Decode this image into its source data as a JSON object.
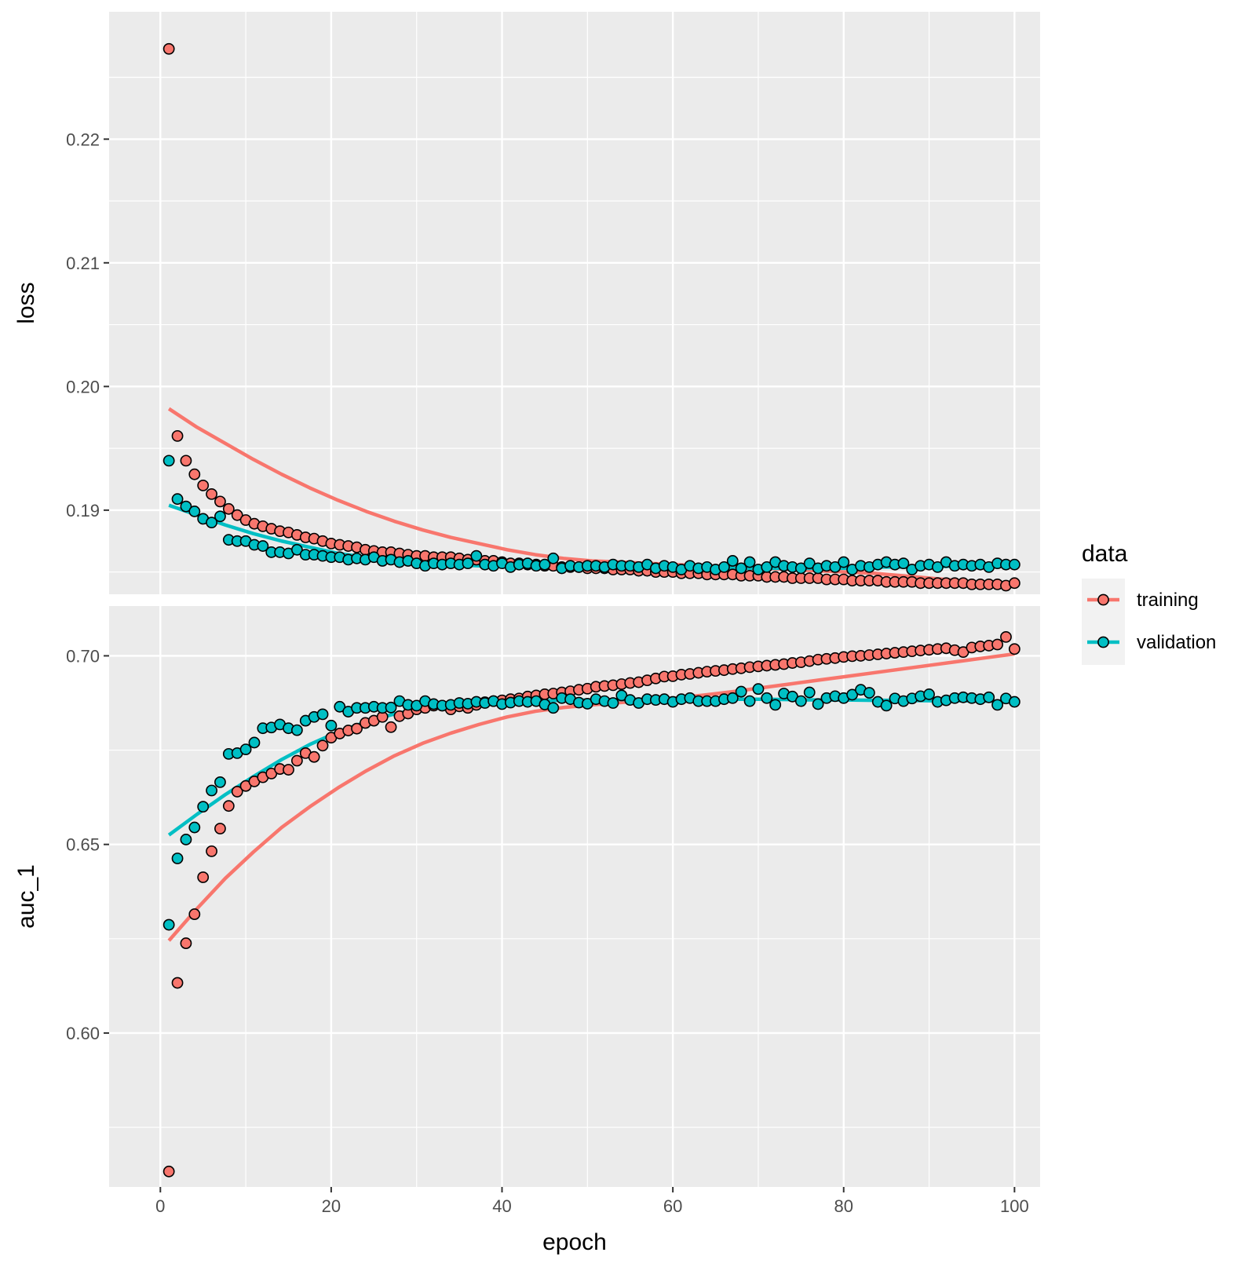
{
  "chart_data": {
    "type": "scatter",
    "xlabel": "epoch",
    "xlim": [
      -6,
      103
    ],
    "x_ticks": [
      0,
      20,
      40,
      60,
      80,
      100
    ],
    "x_tick_labels": [
      "0",
      "20",
      "40",
      "60",
      "80",
      "100"
    ],
    "legend": {
      "title": "data",
      "placement": "right",
      "items": [
        {
          "name": "training",
          "color": "#F8766D"
        },
        {
          "name": "validation",
          "color": "#00BFC4"
        }
      ]
    },
    "panels": [
      {
        "id": "loss",
        "ylabel": "loss",
        "ylim": [
          0.1832,
          0.2303
        ],
        "y_ticks": [
          0.19,
          0.2,
          0.21,
          0.22
        ],
        "y_tick_labels": [
          "0.19",
          "0.20",
          "0.21",
          "0.22"
        ],
        "series": [
          {
            "name": "training",
            "color": "#F8766D",
            "values": [
              0.2273,
              0.196,
              0.194,
              0.1929,
              0.192,
              0.1913,
              0.1907,
              0.1901,
              0.1896,
              0.1892,
              0.1889,
              0.1887,
              0.1885,
              0.1883,
              0.1882,
              0.188,
              0.1878,
              0.1877,
              0.1875,
              0.1873,
              0.1872,
              0.1871,
              0.187,
              0.1868,
              0.1867,
              0.1866,
              0.1866,
              0.1865,
              0.1864,
              0.1863,
              0.1863,
              0.1862,
              0.1862,
              0.1862,
              0.1861,
              0.186,
              0.186,
              0.1859,
              0.1859,
              0.1858,
              0.1857,
              0.1857,
              0.1856,
              0.1856,
              0.1855,
              0.1855,
              0.1854,
              0.1854,
              0.1854,
              0.1853,
              0.1853,
              0.1853,
              0.1852,
              0.1852,
              0.1852,
              0.1851,
              0.1851,
              0.185,
              0.185,
              0.185,
              0.1849,
              0.1849,
              0.1849,
              0.1848,
              0.1848,
              0.1848,
              0.1848,
              0.1847,
              0.1847,
              0.1847,
              0.1846,
              0.1846,
              0.1846,
              0.1845,
              0.1845,
              0.1845,
              0.1845,
              0.1844,
              0.1844,
              0.1844,
              0.1843,
              0.1843,
              0.1843,
              0.1843,
              0.1842,
              0.1842,
              0.1842,
              0.1842,
              0.1841,
              0.1841,
              0.1841,
              0.1841,
              0.1841,
              0.1841,
              0.184,
              0.184,
              0.184,
              0.184,
              0.1839,
              0.1841
            ],
            "smooth": [
              0.1982,
              0.1967,
              0.1954,
              0.1941,
              0.1929,
              0.1918,
              0.1908,
              0.1899,
              0.1891,
              0.1884,
              0.1878,
              0.1873,
              0.1868,
              0.1864,
              0.1861,
              0.1859,
              0.1858,
              0.1857,
              0.1856,
              0.1855,
              0.1854,
              0.1853,
              0.1852,
              0.1851,
              0.185,
              0.1849,
              0.1847,
              0.1845,
              0.1843,
              0.1841,
              0.1838
            ]
          },
          {
            "name": "validation",
            "color": "#00BFC4",
            "values": [
              0.194,
              0.1909,
              0.1903,
              0.1899,
              0.1893,
              0.189,
              0.1895,
              0.1876,
              0.1875,
              0.1875,
              0.1872,
              0.1871,
              0.1866,
              0.1866,
              0.1865,
              0.1868,
              0.1864,
              0.1864,
              0.1863,
              0.1862,
              0.1862,
              0.186,
              0.1861,
              0.186,
              0.1862,
              0.1859,
              0.186,
              0.1858,
              0.1859,
              0.1857,
              0.1855,
              0.1857,
              0.1856,
              0.1857,
              0.1856,
              0.1857,
              0.1863,
              0.1856,
              0.1855,
              0.1857,
              0.1854,
              0.1856,
              0.1857,
              0.1855,
              0.1856,
              0.1861,
              0.1853,
              0.1855,
              0.1854,
              0.1855,
              0.1855,
              0.1854,
              0.1856,
              0.1855,
              0.1855,
              0.1854,
              0.1856,
              0.1853,
              0.1855,
              0.1854,
              0.1852,
              0.1855,
              0.1853,
              0.1854,
              0.1852,
              0.1854,
              0.1859,
              0.1853,
              0.1858,
              0.1852,
              0.1854,
              0.1858,
              0.1855,
              0.1854,
              0.1853,
              0.1857,
              0.1853,
              0.1855,
              0.1854,
              0.1858,
              0.1852,
              0.1855,
              0.1854,
              0.1856,
              0.1858,
              0.1856,
              0.1857,
              0.1852,
              0.1855,
              0.1856,
              0.1854,
              0.1858,
              0.1855,
              0.1856,
              0.1855,
              0.1856,
              0.1854,
              0.1857,
              0.1856,
              0.1856
            ],
            "smooth": [
              0.1904,
              0.1896,
              0.1888,
              0.1881,
              0.1875,
              0.187,
              0.1865,
              0.1862,
              0.1859,
              0.1857,
              0.1856,
              0.1855,
              0.1855,
              0.1854,
              0.1854,
              0.1854,
              0.1854,
              0.1853,
              0.1853,
              0.1853,
              0.1853,
              0.1853,
              0.1853,
              0.1853,
              0.1853,
              0.1854,
              0.1854,
              0.1854,
              0.1855,
              0.1855,
              0.1855
            ]
          }
        ]
      },
      {
        "id": "auc_1",
        "ylabel": "auc_1",
        "ylim": [
          0.5592,
          0.7132
        ],
        "y_ticks": [
          0.6,
          0.65,
          0.7
        ],
        "y_tick_labels": [
          "0.60",
          "0.65",
          "0.70"
        ],
        "series": [
          {
            "name": "training",
            "color": "#F8766D",
            "values": [
              0.5633,
              0.6133,
              0.6238,
              0.6315,
              0.6413,
              0.6482,
              0.6542,
              0.6602,
              0.664,
              0.6655,
              0.6667,
              0.6678,
              0.6688,
              0.67,
              0.6698,
              0.6722,
              0.6742,
              0.6732,
              0.6762,
              0.6783,
              0.6794,
              0.6802,
              0.6807,
              0.6822,
              0.6828,
              0.6838,
              0.6811,
              0.684,
              0.6847,
              0.6858,
              0.6862,
              0.6868,
              0.6868,
              0.6858,
              0.6866,
              0.6862,
              0.687,
              0.6877,
              0.688,
              0.6882,
              0.6885,
              0.6887,
              0.6892,
              0.6895,
              0.6898,
              0.69,
              0.6903,
              0.6906,
              0.691,
              0.6913,
              0.6918,
              0.692,
              0.6922,
              0.6925,
              0.6928,
              0.693,
              0.6935,
              0.694,
              0.6945,
              0.6946,
              0.695,
              0.6952,
              0.6955,
              0.6958,
              0.696,
              0.6962,
              0.6965,
              0.6967,
              0.697,
              0.6972,
              0.6974,
              0.6976,
              0.6978,
              0.6981,
              0.6983,
              0.6986,
              0.699,
              0.6992,
              0.6994,
              0.6997,
              0.6999,
              0.7,
              0.7002,
              0.7004,
              0.7006,
              0.7008,
              0.701,
              0.7012,
              0.7014,
              0.7016,
              0.7018,
              0.702,
              0.7015,
              0.701,
              0.7022,
              0.7025,
              0.7027,
              0.703,
              0.705,
              0.7018
            ],
            "smooth": [
              0.6245,
              0.633,
              0.641,
              0.648,
              0.6545,
              0.66,
              0.665,
              0.6695,
              0.6735,
              0.6768,
              0.6795,
              0.6818,
              0.6838,
              0.6853,
              0.6863,
              0.687,
              0.6876,
              0.6882,
              0.6888,
              0.6896,
              0.6905,
              0.6915,
              0.6925,
              0.6935,
              0.6945,
              0.6955,
              0.6965,
              0.6975,
              0.6985,
              0.6995,
              0.7005
            ]
          },
          {
            "name": "validation",
            "color": "#00BFC4",
            "values": [
              0.6287,
              0.6463,
              0.6513,
              0.6545,
              0.66,
              0.6643,
              0.6665,
              0.674,
              0.6742,
              0.6752,
              0.677,
              0.6808,
              0.681,
              0.6818,
              0.6808,
              0.6803,
              0.6828,
              0.6838,
              0.6845,
              0.6815,
              0.6865,
              0.6852,
              0.6862,
              0.6862,
              0.6865,
              0.6862,
              0.6863,
              0.688,
              0.687,
              0.6868,
              0.688,
              0.6872,
              0.6868,
              0.687,
              0.6875,
              0.6873,
              0.6878,
              0.6875,
              0.688,
              0.6872,
              0.6876,
              0.688,
              0.6878,
              0.688,
              0.6871,
              0.6862,
              0.6888,
              0.6885,
              0.6876,
              0.6873,
              0.6885,
              0.688,
              0.6875,
              0.6895,
              0.6883,
              0.6875,
              0.6885,
              0.6883,
              0.6885,
              0.6878,
              0.6885,
              0.6888,
              0.688,
              0.688,
              0.688,
              0.6885,
              0.6888,
              0.6905,
              0.688,
              0.6912,
              0.6888,
              0.687,
              0.69,
              0.6892,
              0.688,
              0.6903,
              0.6872,
              0.6888,
              0.6893,
              0.6888,
              0.6897,
              0.691,
              0.6902,
              0.6878,
              0.6868,
              0.6887,
              0.688,
              0.6887,
              0.6893,
              0.6898,
              0.6878,
              0.6882,
              0.6888,
              0.689,
              0.6888,
              0.6885,
              0.689,
              0.687,
              0.6887,
              0.6878
            ],
            "smooth": [
              0.6525,
              0.658,
              0.6632,
              0.668,
              0.6725,
              0.6765,
              0.6798,
              0.6825,
              0.6846,
              0.686,
              0.687,
              0.6875,
              0.6878,
              0.688,
              0.6882,
              0.6883,
              0.6884,
              0.6885,
              0.6886,
              0.6886,
              0.6885,
              0.6885,
              0.6884,
              0.6883,
              0.6883,
              0.6882,
              0.6882,
              0.6881,
              0.6881,
              0.688,
              0.688
            ]
          }
        ]
      }
    ]
  }
}
